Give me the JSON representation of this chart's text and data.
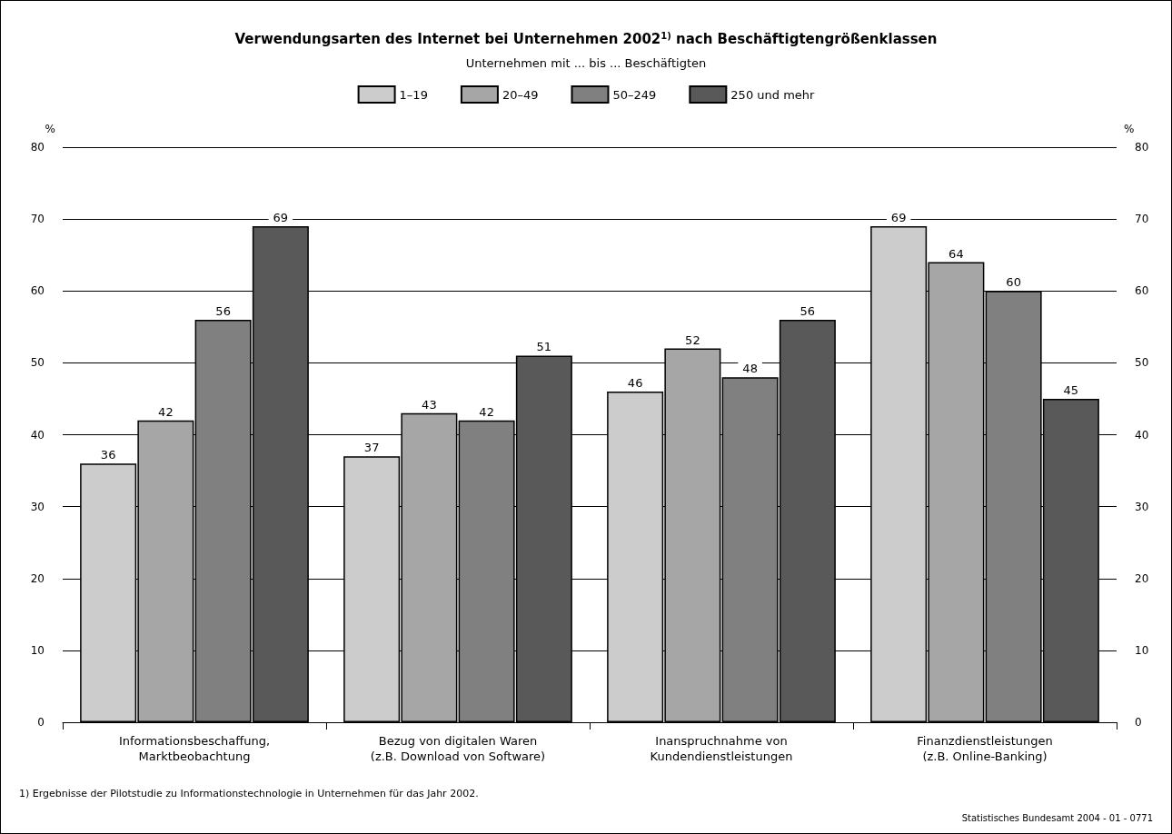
{
  "chart_data": {
    "type": "bar",
    "title": "Verwendungsarten des Internet bei Unternehmen 2002$^{1)}$ nach Beschäftigtengrößenklassen",
    "legend_title": "Unternehmen mit ... bis ... Beschäftigten",
    "categories": [
      "Informationsbeschaffung,\nMarktbeobachtung",
      "Bezug von digitalen Waren\n(z.B. Download von Software)",
      "Inanspruchnahme von\nKundendienstleistungen",
      "Finanzdienstleistungen\n(z.B. Online-Banking)"
    ],
    "series": [
      {
        "name": "1–19",
        "color": "#cccccc",
        "values": [
          36,
          37,
          46,
          69
        ]
      },
      {
        "name": "20–49",
        "color": "#a6a6a6",
        "values": [
          42,
          43,
          52,
          64
        ]
      },
      {
        "name": "50–249",
        "color": "#808080",
        "values": [
          56,
          42,
          48,
          60
        ]
      },
      {
        "name": "250 und mehr",
        "color": "#595959",
        "values": [
          69,
          51,
          56,
          45
        ]
      }
    ],
    "ylabel": "%",
    "y2label": "%",
    "ylim": [
      0,
      80
    ],
    "yticks": [
      0,
      10,
      20,
      30,
      40,
      50,
      60,
      70,
      80
    ],
    "y2lim": [
      0,
      80
    ],
    "y2ticks": [
      0,
      10,
      20,
      30,
      40,
      50,
      60,
      70,
      80
    ],
    "data_labels": true,
    "grid": "y",
    "legend": "top",
    "annotations": [
      "1) Ergebnisse der Pilotstudie zu Informationstechnologie in Unternehmen für das Jahr 2002.",
      "Statistisches Bundesamt 2004 - 01 - 0771"
    ]
  }
}
